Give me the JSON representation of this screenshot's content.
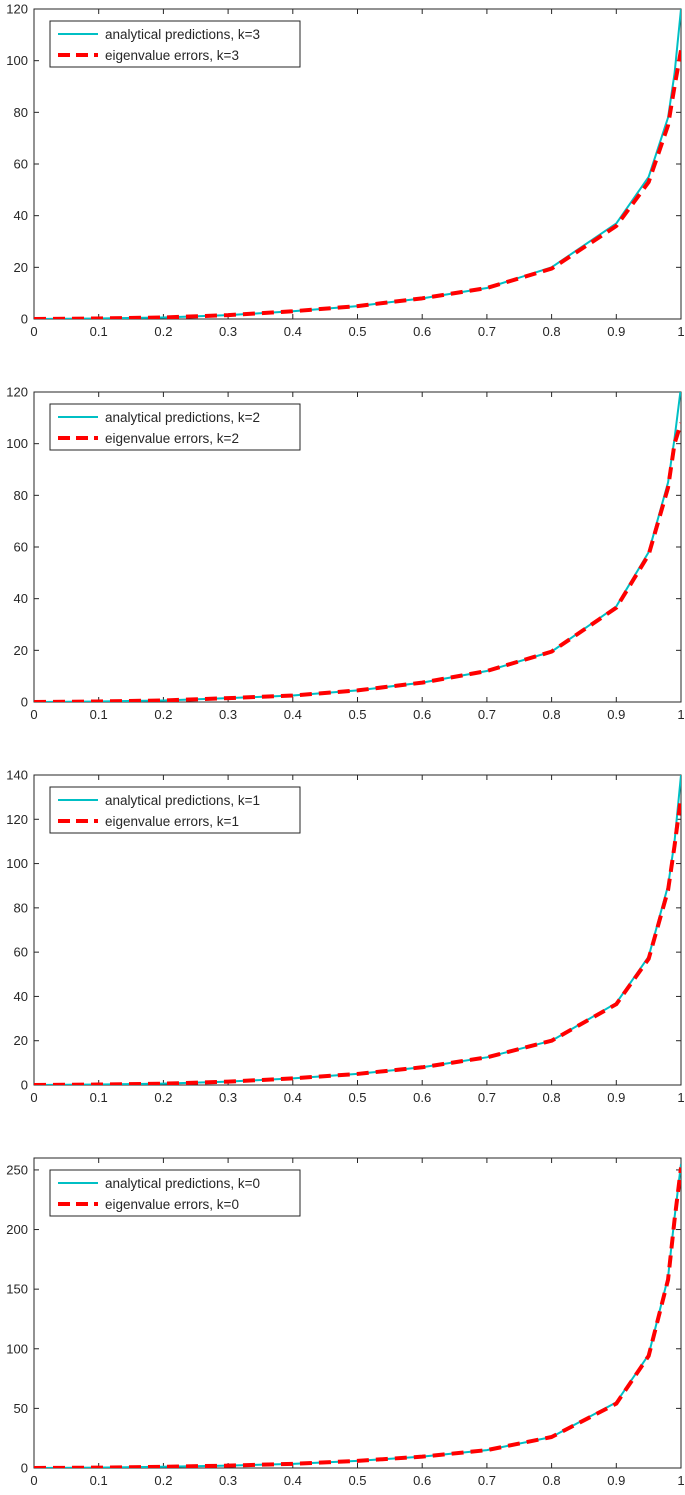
{
  "chart_data": [
    {
      "type": "line",
      "xlim": [
        0,
        1
      ],
      "ylim": [
        0,
        120
      ],
      "xticks": [
        "0",
        "0.1",
        "0.2",
        "0.3",
        "0.4",
        "0.5",
        "0.6",
        "0.7",
        "0.8",
        "0.9",
        "1"
      ],
      "yticks": [
        "0",
        "20",
        "40",
        "60",
        "80",
        "100",
        "120"
      ],
      "grid": false,
      "legend_position": "top-left",
      "x": [
        0,
        0.1,
        0.2,
        0.3,
        0.4,
        0.5,
        0.6,
        0.7,
        0.8,
        0.9,
        0.95,
        0.98,
        0.99,
        1.0
      ],
      "series": [
        {
          "name": "analytical predictions, k=3",
          "color": "#00bfc4",
          "style": "solid",
          "values": [
            0,
            0.2,
            0.6,
            1.5,
            3,
            5,
            8,
            12,
            20,
            37,
            55,
            78,
            95,
            120
          ]
        },
        {
          "name": "eigenvalue errors, k=3",
          "color": "#ff0000",
          "style": "dashed",
          "values": [
            0,
            0.2,
            0.6,
            1.5,
            3,
            5,
            8,
            12,
            19.5,
            36,
            53,
            75,
            90,
            104
          ]
        }
      ]
    },
    {
      "type": "line",
      "xlim": [
        0,
        1
      ],
      "ylim": [
        0,
        120
      ],
      "xticks": [
        "0",
        "0.1",
        "0.2",
        "0.3",
        "0.4",
        "0.5",
        "0.6",
        "0.7",
        "0.8",
        "0.9",
        "1"
      ],
      "yticks": [
        "0",
        "20",
        "40",
        "60",
        "80",
        "100",
        "120"
      ],
      "grid": false,
      "legend_position": "top-left",
      "x": [
        0,
        0.1,
        0.2,
        0.3,
        0.4,
        0.5,
        0.6,
        0.7,
        0.8,
        0.9,
        0.95,
        0.98,
        0.99,
        1.0
      ],
      "series": [
        {
          "name": "analytical predictions, k=2",
          "color": "#00bfc4",
          "style": "solid",
          "values": [
            0,
            0.2,
            0.6,
            1.5,
            2.5,
            4.5,
            7.5,
            12,
            19.5,
            37,
            58,
            85,
            102,
            122
          ]
        },
        {
          "name": "eigenvalue errors, k=2",
          "color": "#ff0000",
          "style": "dashed",
          "values": [
            0,
            0.2,
            0.6,
            1.5,
            2.5,
            4.5,
            7.5,
            12,
            19.5,
            36.5,
            57,
            83,
            100,
            108
          ]
        }
      ]
    },
    {
      "type": "line",
      "xlim": [
        0,
        1
      ],
      "ylim": [
        0,
        140
      ],
      "xticks": [
        "0",
        "0.1",
        "0.2",
        "0.3",
        "0.4",
        "0.5",
        "0.6",
        "0.7",
        "0.8",
        "0.9",
        "1"
      ],
      "yticks": [
        "0",
        "20",
        "40",
        "60",
        "80",
        "100",
        "120",
        "140"
      ],
      "grid": false,
      "legend_position": "top-left",
      "x": [
        0,
        0.1,
        0.2,
        0.3,
        0.4,
        0.5,
        0.6,
        0.7,
        0.8,
        0.9,
        0.95,
        0.98,
        0.99,
        1.0
      ],
      "series": [
        {
          "name": "analytical predictions, k=1",
          "color": "#00bfc4",
          "style": "solid",
          "values": [
            0,
            0.2,
            0.6,
            1.5,
            3,
            5,
            8,
            12.5,
            20,
            37,
            58,
            90,
            110,
            140
          ]
        },
        {
          "name": "eigenvalue errors, k=1",
          "color": "#ff0000",
          "style": "dashed",
          "values": [
            0,
            0.2,
            0.6,
            1.5,
            3,
            5,
            8,
            12.5,
            20,
            36.5,
            57,
            88,
            108,
            130
          ]
        }
      ]
    },
    {
      "type": "line",
      "xlim": [
        0,
        1
      ],
      "ylim": [
        0,
        260
      ],
      "xticks": [
        "0",
        "0.1",
        "0.2",
        "0.3",
        "0.4",
        "0.5",
        "0.6",
        "0.7",
        "0.8",
        "0.9",
        "1"
      ],
      "yticks": [
        "0",
        "50",
        "100",
        "150",
        "200",
        "250"
      ],
      "grid": false,
      "legend_position": "top-left",
      "x": [
        0,
        0.1,
        0.2,
        0.3,
        0.4,
        0.5,
        0.6,
        0.7,
        0.8,
        0.9,
        0.95,
        0.98,
        0.99,
        1.0
      ],
      "series": [
        {
          "name": "analytical predictions, k=0",
          "color": "#00bfc4",
          "style": "solid",
          "values": [
            0,
            0.3,
            1,
            2,
            3.5,
            6,
            9.5,
            15,
            26,
            55,
            95,
            160,
            210,
            255
          ]
        },
        {
          "name": "eigenvalue errors, k=0",
          "color": "#ff0000",
          "style": "dashed",
          "values": [
            0,
            0.3,
            1,
            2,
            3.5,
            6,
            9.5,
            15,
            26,
            54,
            94,
            158,
            208,
            252
          ]
        }
      ]
    }
  ]
}
